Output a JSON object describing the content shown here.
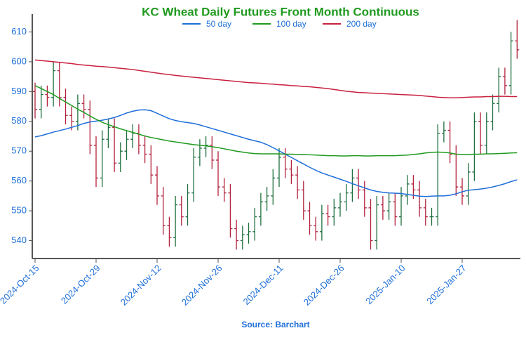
{
  "chart_data": {
    "type": "ohlc",
    "title": "KC Wheat Daily Futures Front Month Continuous",
    "source": "Source: Barchart",
    "categories": [
      "2024-Oct-15",
      null,
      null,
      null,
      null,
      null,
      null,
      null,
      null,
      null,
      "2024-Oct-29",
      null,
      null,
      null,
      null,
      null,
      null,
      null,
      null,
      null,
      "2024-Nov-12",
      null,
      null,
      null,
      null,
      null,
      null,
      null,
      null,
      null,
      "2024-Nov-26",
      null,
      null,
      null,
      null,
      null,
      null,
      null,
      null,
      null,
      "2024-Dec-11",
      null,
      null,
      null,
      null,
      null,
      null,
      null,
      null,
      null,
      "2024-Dec-26",
      null,
      null,
      null,
      null,
      null,
      null,
      null,
      null,
      null,
      "2025-Jan-10",
      null,
      null,
      null,
      null,
      null,
      null,
      null,
      null,
      null,
      "2025-Jan-27",
      null,
      null,
      null,
      null,
      null,
      null,
      null,
      null,
      null
    ],
    "open": [
      590,
      584,
      589,
      588,
      597,
      588,
      582,
      580,
      586,
      584,
      572,
      561,
      574,
      578,
      566,
      570,
      574,
      576,
      572,
      569,
      562,
      555,
      545,
      541,
      552,
      548,
      556,
      568,
      571,
      572,
      567,
      558,
      556,
      544,
      540,
      542,
      543,
      548,
      553,
      555,
      561,
      568,
      564,
      562,
      557,
      550,
      545,
      543,
      549,
      548,
      551,
      553,
      556,
      561,
      557,
      551,
      540,
      552,
      550,
      553,
      548,
      555,
      559,
      557,
      551,
      548,
      548,
      576,
      577,
      569,
      558,
      555,
      563,
      580,
      572,
      580,
      586,
      595,
      592,
      607
    ],
    "high": [
      593,
      592,
      592,
      600,
      600,
      591,
      585,
      589,
      589,
      587,
      575,
      577,
      581,
      581,
      573,
      577,
      579,
      579,
      575,
      572,
      565,
      558,
      548,
      555,
      555,
      559,
      571,
      574,
      575,
      575,
      570,
      561,
      559,
      547,
      545,
      546,
      551,
      556,
      558,
      564,
      571,
      571,
      567,
      565,
      560,
      553,
      548,
      552,
      552,
      554,
      556,
      559,
      564,
      564,
      560,
      554,
      555,
      555,
      556,
      556,
      558,
      562,
      562,
      560,
      554,
      551,
      579,
      580,
      580,
      572,
      561,
      566,
      583,
      583,
      583,
      589,
      598,
      598,
      610,
      614
    ],
    "low": [
      581,
      581,
      585,
      585,
      585,
      579,
      577,
      577,
      581,
      569,
      558,
      558,
      571,
      563,
      563,
      567,
      571,
      569,
      566,
      559,
      552,
      542,
      538,
      538,
      545,
      545,
      553,
      565,
      568,
      564,
      555,
      553,
      541,
      537,
      537,
      539,
      540,
      545,
      550,
      552,
      558,
      561,
      559,
      554,
      547,
      542,
      540,
      540,
      545,
      545,
      548,
      550,
      553,
      554,
      548,
      537,
      537,
      547,
      547,
      545,
      545,
      552,
      554,
      548,
      545,
      545,
      545,
      573,
      566,
      555,
      552,
      552,
      560,
      569,
      569,
      577,
      583,
      589,
      589,
      601
    ],
    "close": [
      584,
      589,
      588,
      597,
      588,
      582,
      580,
      586,
      584,
      572,
      561,
      574,
      578,
      566,
      570,
      574,
      576,
      572,
      569,
      562,
      555,
      545,
      541,
      552,
      548,
      556,
      568,
      571,
      572,
      567,
      558,
      556,
      544,
      540,
      542,
      543,
      548,
      553,
      555,
      561,
      568,
      564,
      562,
      557,
      550,
      545,
      543,
      549,
      548,
      551,
      553,
      556,
      561,
      557,
      551,
      540,
      552,
      550,
      553,
      548,
      555,
      559,
      557,
      551,
      548,
      548,
      576,
      577,
      569,
      558,
      555,
      563,
      580,
      572,
      580,
      586,
      595,
      592,
      607,
      604
    ],
    "up_color": "#1e6e3e",
    "down_color": "#b3203c",
    "series": [
      {
        "name": "50 day",
        "color": "#1e6fd9",
        "values": [
          574.8,
          575.2,
          575.8,
          576.4,
          576.9,
          577.4,
          578,
          578.6,
          579.3,
          579.8,
          580.1,
          580.4,
          580.8,
          581.3,
          582,
          582.8,
          583.4,
          583.8,
          583.9,
          583.6,
          582.7,
          581.8,
          580.9,
          580.3,
          579.9,
          579.6,
          579.3,
          578.8,
          578.2,
          577.6,
          577,
          576.4,
          575.8,
          575.2,
          574.6,
          574,
          573.5,
          573,
          572.2,
          571.2,
          570.1,
          569,
          567.9,
          566.8,
          565.7,
          564.6,
          563.6,
          562.7,
          562,
          561.3,
          560.6,
          559.9,
          559.1,
          558.4,
          557.7,
          557,
          556.5,
          556.2,
          556,
          555.9,
          555.8,
          555.5,
          555.2,
          554.9,
          554.8,
          554.9,
          555,
          555,
          555.2,
          555.7,
          556.4,
          556.9,
          557.1,
          557.3,
          557.6,
          558,
          558.5,
          559.1,
          559.8,
          560.4
        ]
      },
      {
        "name": "100 day",
        "color": "#1f9a1f",
        "values": [
          592,
          591,
          590,
          589,
          587.7,
          586.5,
          585.3,
          584.1,
          583,
          581.8,
          580.7,
          579.7,
          578.9,
          578.2,
          577.5,
          576.9,
          576.3,
          575.7,
          575.1,
          574.6,
          574.2,
          573.8,
          573.4,
          573.1,
          572.8,
          572.5,
          572.2,
          572,
          571.8,
          571.5,
          571.2,
          570.8,
          570.4,
          570,
          569.7,
          569.4,
          569.2,
          569.1,
          569.1,
          569.1,
          569.1,
          569,
          569,
          568.9,
          568.9,
          568.8,
          568.7,
          568.6,
          568.5,
          568.5,
          568.4,
          568.4,
          568.5,
          568.5,
          568.4,
          568.4,
          568.5,
          568.5,
          568.5,
          568.5,
          568.6,
          568.7,
          568.9,
          569.1,
          569.4,
          569.6,
          569.7,
          569.6,
          569.4,
          569,
          568.9,
          568.9,
          569,
          569,
          569.1,
          569.1,
          569.2,
          569.3,
          569.4,
          569.5
        ]
      },
      {
        "name": "200 day",
        "color": "#c8203f",
        "values": [
          600.6,
          600.4,
          600.2,
          600,
          599.8,
          599.6,
          599.4,
          599.1,
          598.9,
          598.7,
          598.5,
          598.4,
          598.2,
          598,
          597.8,
          597.6,
          597.4,
          597.1,
          596.8,
          596.5,
          596.2,
          595.9,
          595.7,
          595.4,
          595.2,
          595,
          594.8,
          594.6,
          594.4,
          594.2,
          594,
          593.8,
          593.6,
          593.4,
          593.2,
          593,
          592.9,
          592.8,
          592.6,
          592.5,
          592.3,
          592.2,
          592,
          591.9,
          591.7,
          591.6,
          591.4,
          591.2,
          591,
          590.7,
          590.4,
          590.1,
          589.9,
          589.7,
          589.6,
          589.5,
          589.4,
          589.3,
          589.2,
          589.1,
          589,
          588.9,
          588.8,
          588.7,
          588.5,
          588.3,
          588.1,
          588,
          587.9,
          587.9,
          588,
          588.1,
          588.2,
          588.2,
          588.3,
          588.3,
          588.4,
          588.4,
          588.3,
          588.3
        ]
      }
    ],
    "ylim": [
      534,
      616
    ],
    "yticks": [
      540,
      550,
      560,
      570,
      580,
      590,
      600,
      610
    ]
  }
}
